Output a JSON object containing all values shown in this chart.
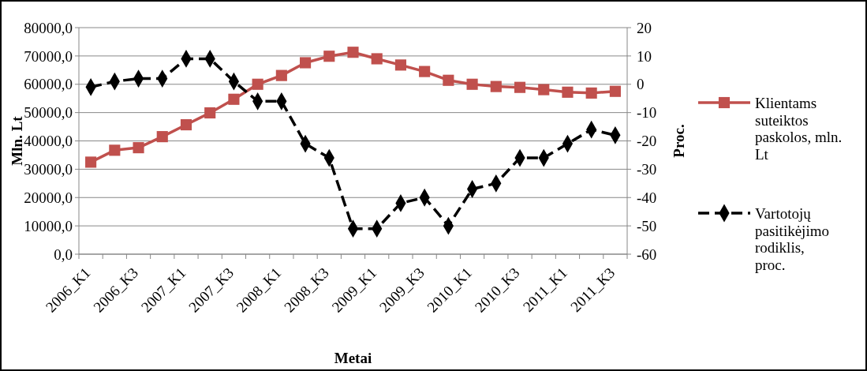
{
  "chart_data": {
    "type": "line",
    "xlabel": "Metai",
    "ylabel": "Mln. Lt",
    "y2label": "Proc.",
    "categories": [
      "2006_K1",
      null,
      "2006_K3",
      null,
      "2007_K1",
      null,
      "2007_K3",
      null,
      "2008_K1",
      null,
      "2008_K3",
      null,
      "2009_K1",
      null,
      "2009_K3",
      null,
      "2010_K1",
      null,
      "2010_K3",
      null,
      "2011_K1",
      null,
      "2011_K3"
    ],
    "series": [
      {
        "name": "Klientams suteiktos paskolos, mln. Lt",
        "color": "#c0504d",
        "marker": "square",
        "line_style": "solid",
        "values": [
          32500,
          36700,
          37600,
          41500,
          45700,
          49900,
          54700,
          60000,
          63100,
          67600,
          69900,
          71300,
          69000,
          66800,
          64500,
          61400,
          60000,
          59200,
          58900,
          58100,
          57200,
          56900,
          57500
        ]
      },
      {
        "name": "Vartotojų pasitikėjimo rodiklis, proc.",
        "color": "#000000",
        "marker": "diamond",
        "line_style": "dashed",
        "axis": "y2",
        "values": [
          -1,
          1,
          2,
          2,
          9,
          9,
          1,
          -6,
          -6,
          -21,
          -26,
          -51,
          -51,
          -42,
          -40,
          -50,
          -37,
          -35,
          -26,
          -26,
          -21,
          -16,
          -18
        ]
      }
    ],
    "ylim": [
      0,
      80000
    ],
    "yticks": [
      {
        "value": 0,
        "label": "0,0"
      },
      {
        "value": 10000,
        "label": "10000,0"
      },
      {
        "value": 20000,
        "label": "20000,0"
      },
      {
        "value": 30000,
        "label": "30000,0"
      },
      {
        "value": 40000,
        "label": "40000,0"
      },
      {
        "value": 50000,
        "label": "50000,0"
      },
      {
        "value": 60000,
        "label": "60000,0"
      },
      {
        "value": 70000,
        "label": "70000,0"
      },
      {
        "value": 80000,
        "label": "80000,0"
      }
    ],
    "y2lim": [
      -60,
      20
    ],
    "y2ticks": [
      -60,
      -50,
      -40,
      -30,
      -20,
      -10,
      0,
      10,
      20
    ],
    "grid": "y",
    "legend": "right"
  }
}
